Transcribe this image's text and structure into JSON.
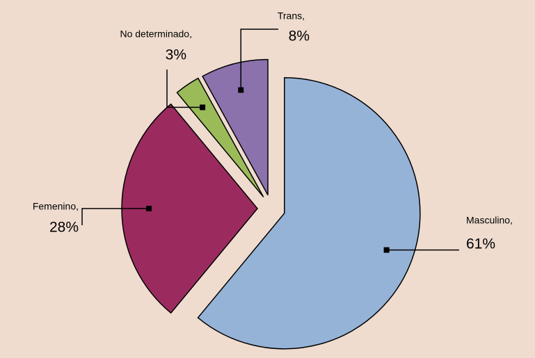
{
  "chart_data": {
    "type": "pie",
    "categories": [
      "Masculino,",
      "Femenino,",
      "No determinado,",
      "Trans,"
    ],
    "values": [
      61,
      28,
      3,
      8
    ],
    "value_labels": [
      "61%",
      "28%",
      "3%",
      "8%"
    ],
    "colors": [
      "#95b3d7",
      "#9b2b5f",
      "#9bbb59",
      "#8b72ad"
    ]
  }
}
